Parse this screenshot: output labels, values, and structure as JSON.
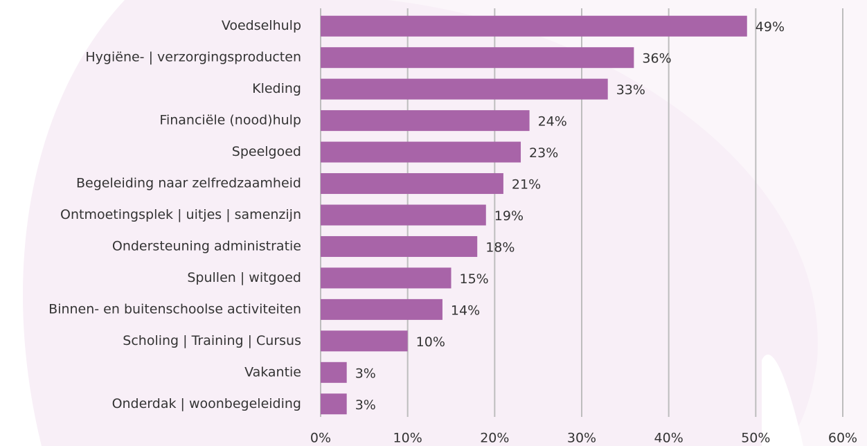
{
  "chart_data": {
    "type": "bar",
    "orientation": "horizontal",
    "categories": [
      "Voedselhulp",
      "Hygiëne- | verzorgingsproducten",
      "Kleding",
      "Financiële (nood)hulp",
      "Speelgoed",
      "Begeleiding naar zelfredzaamheid",
      "Ontmoetingsplek | uitjes | samenzijn",
      "Ondersteuning administratie",
      "Spullen | witgoed",
      "Binnen- en buitenschoolse activiteiten",
      "Scholing | Training | Cursus",
      "Vakantie",
      "Onderdak | woonbegeleiding"
    ],
    "values": [
      49,
      36,
      33,
      24,
      23,
      21,
      19,
      18,
      15,
      14,
      10,
      3,
      3
    ],
    "value_labels": [
      "49%",
      "36%",
      "33%",
      "24%",
      "23%",
      "21%",
      "19%",
      "18%",
      "15%",
      "14%",
      "10%",
      "3%",
      "3%"
    ],
    "color": "#a864a8",
    "xlim": [
      0,
      60
    ],
    "xticks": [
      {
        "value": 0,
        "label": "0%"
      },
      {
        "value": 10,
        "label": "10%"
      },
      {
        "value": 20,
        "label": "20%"
      },
      {
        "value": 30,
        "label": "30%"
      },
      {
        "value": 40,
        "label": "40%"
      },
      {
        "value": 50,
        "label": "50%"
      },
      {
        "value": 60,
        "label": "60%"
      }
    ],
    "grid": true
  }
}
